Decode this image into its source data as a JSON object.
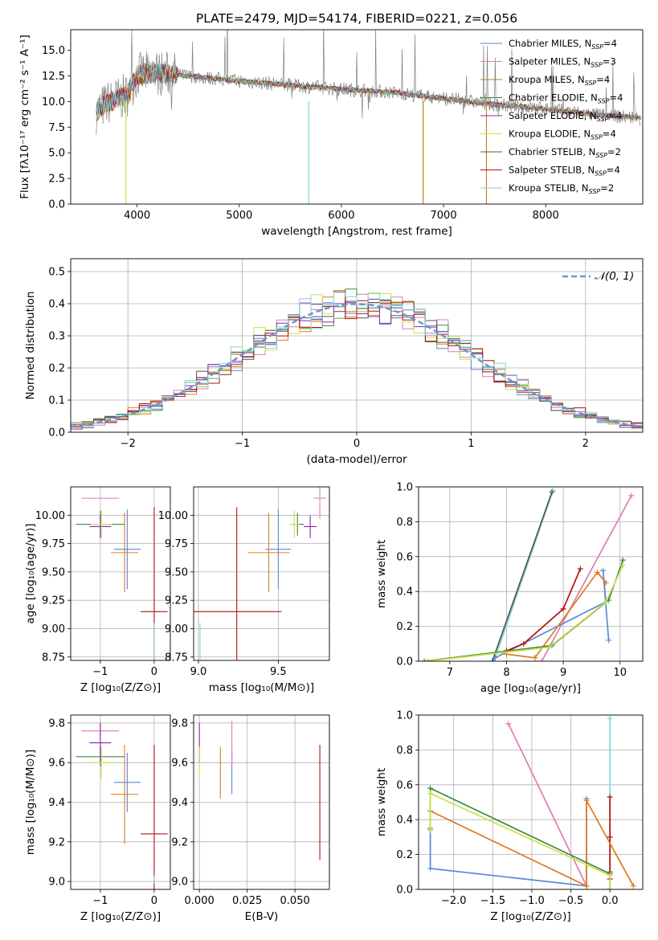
{
  "colors": {
    "Chabrier MILES": "#5b86dc",
    "Salpeter MILES": "#e27ab7",
    "Kroupa MILES": "#b08a14",
    "Chabrier ELODIE": "#3f8a3f",
    "Salpeter ELODIE": "#8f22b4",
    "Kroupa ELODIE": "#cce04a",
    "Chabrier STELIB": "#555555",
    "Salpeter STELIB": "#b31010",
    "Kroupa STELIB": "#7fd6d6",
    "orange": "#e07a1e",
    "data": "#808080",
    "gauss": "#6a94d4"
  },
  "chart_data": [
    {
      "id": "spectrum",
      "type": "line",
      "title": "PLATE=2479, MJD=54174, FIBERID=0221, z=0.056",
      "xlabel": "wavelength [Angstrom, rest frame]",
      "ylabel": "Flux [fλ10⁻¹⁷ erg cm⁻² s⁻¹ A⁻¹]",
      "xlim": [
        3350,
        8950
      ],
      "ylim": [
        0,
        17
      ],
      "xticks": [
        4000,
        5000,
        6000,
        7000,
        8000
      ],
      "yticks": [
        0.0,
        2.5,
        5.0,
        7.5,
        10.0,
        12.5,
        15.0
      ],
      "grid": false,
      "legend_position": "upper right",
      "legend": [
        {
          "name": "Chabrier MILES",
          "nssp": "4"
        },
        {
          "name": "Salpeter MILES",
          "nssp": "3"
        },
        {
          "name": "Kroupa MILES",
          "nssp": "4"
        },
        {
          "name": "Chabrier ELODIE",
          "nssp": "4"
        },
        {
          "name": "Salpeter ELODIE",
          "nssp": "4"
        },
        {
          "name": "Kroupa ELODIE",
          "nssp": "4"
        },
        {
          "name": "Chabrier STELIB",
          "nssp": "2"
        },
        {
          "name": "Salpeter STELIB",
          "nssp": "4"
        },
        {
          "name": "Kroupa STELIB",
          "nssp": "2"
        }
      ],
      "continuum": [
        [
          3600,
          9.0
        ],
        [
          3700,
          9.8
        ],
        [
          3900,
          10.6
        ],
        [
          4000,
          12.6
        ],
        [
          4200,
          12.8
        ],
        [
          4500,
          12.5
        ],
        [
          5000,
          12.0
        ],
        [
          5500,
          11.6
        ],
        [
          6000,
          11.2
        ],
        [
          6500,
          10.9
        ],
        [
          7000,
          10.3
        ],
        [
          7500,
          9.7
        ],
        [
          8000,
          9.3
        ],
        [
          8500,
          8.7
        ],
        [
          8930,
          8.4
        ]
      ],
      "dropouts": [
        {
          "x": 3890,
          "color": "#cce04a"
        },
        {
          "x": 5680,
          "color": "#7fd6d6"
        },
        {
          "x": 6800,
          "color": "#b08a14"
        },
        {
          "x": 7420,
          "color": "#e07a1e"
        }
      ]
    },
    {
      "id": "residuals",
      "type": "line",
      "xlabel": "(data-model)/error",
      "ylabel": "Normed distribution",
      "xlim": [
        -2.5,
        2.5
      ],
      "ylim": [
        0,
        0.54
      ],
      "xticks": [
        -2,
        -1,
        0,
        1,
        2
      ],
      "yticks": [
        0.0,
        0.1,
        0.2,
        0.3,
        0.4,
        0.5
      ],
      "grid": true,
      "legend_position": "upper right",
      "legend": [
        {
          "name": "𝒩(0, 1)"
        }
      ],
      "histogram_bin_width": 0.1
    },
    {
      "id": "Z-age",
      "type": "scatter",
      "xlabel": "Z [log₁₀(Z/Z⊙)]",
      "ylabel": "age  [log₁₀(age/yr)]",
      "xlim": [
        -1.55,
        0.3
      ],
      "ylim": [
        8.72,
        10.25
      ],
      "xticks": [
        -1,
        0
      ],
      "yticks": [
        8.75,
        9.0,
        9.25,
        9.5,
        9.75,
        10.0
      ],
      "grid": true,
      "points": [
        {
          "series": "Chabrier MILES",
          "x": -0.5,
          "y": 9.7,
          "xerr": 0.25,
          "yerr": 0.35
        },
        {
          "series": "Salpeter MILES",
          "x": -1.0,
          "y": 10.15,
          "xerr": 0.35,
          "yerr": 0.0
        },
        {
          "series": "orange",
          "x": -0.55,
          "y": 9.67,
          "xerr": 0.25,
          "yerr": 0.35
        },
        {
          "series": "Chabrier ELODIE",
          "x": -1.0,
          "y": 9.92,
          "xerr": 0.45,
          "yerr": 0.12
        },
        {
          "series": "Salpeter ELODIE",
          "x": -1.0,
          "y": 9.9,
          "xerr": 0.2,
          "yerr": 0.1
        },
        {
          "series": "Kroupa ELODIE",
          "x": -0.98,
          "y": 9.92,
          "xerr": 0.2,
          "yerr": 0.12
        },
        {
          "series": "Salpeter STELIB",
          "x": 0.0,
          "y": 9.15,
          "xerr": 0.25,
          "yerr": 0.92
        },
        {
          "series": "Kroupa STELIB",
          "x": 0.0,
          "y": 8.85,
          "xerr": 0.0,
          "yerr": 0.2
        }
      ]
    },
    {
      "id": "mass-age",
      "type": "scatter",
      "xlabel": "mass [log₁₀(M/M⊙)]",
      "ylabel": "",
      "xlim": [
        8.97,
        9.82
      ],
      "ylim": [
        8.72,
        10.25
      ],
      "xticks": [
        9.0,
        9.5
      ],
      "yticks": [
        8.75,
        9.0,
        9.25,
        9.5,
        9.75,
        10.0
      ],
      "grid": true,
      "points": [
        {
          "series": "Chabrier MILES",
          "x": 9.5,
          "y": 9.7,
          "xerr": 0.08,
          "yerr": 0.35
        },
        {
          "series": "Salpeter MILES",
          "x": 9.76,
          "y": 10.15,
          "xerr": 0.04,
          "yerr": 0.18
        },
        {
          "series": "orange",
          "x": 9.44,
          "y": 9.67,
          "xerr": 0.13,
          "yerr": 0.35
        },
        {
          "series": "Chabrier ELODIE",
          "x": 9.62,
          "y": 9.92,
          "xerr": 0.04,
          "yerr": 0.1
        },
        {
          "series": "Salpeter ELODIE",
          "x": 9.7,
          "y": 9.9,
          "xerr": 0.04,
          "yerr": 0.1
        },
        {
          "series": "Kroupa ELODIE",
          "x": 9.6,
          "y": 9.92,
          "xerr": 0.03,
          "yerr": 0.12
        },
        {
          "series": "Salpeter STELIB",
          "x": 9.24,
          "y": 9.15,
          "xerr": 0.28,
          "yerr": 0.92
        },
        {
          "series": "Kroupa STELIB",
          "x": 9.01,
          "y": 8.85,
          "xerr": 0.0,
          "yerr": 0.2
        }
      ]
    },
    {
      "id": "age-weight",
      "type": "line",
      "xlabel": "age  [log₁₀(age/yr)]",
      "ylabel": "mass weight",
      "xlim": [
        6.45,
        10.4
      ],
      "ylim": [
        0,
        1
      ],
      "xticks": [
        7,
        8,
        9,
        10
      ],
      "yticks": [
        0.0,
        0.2,
        0.4,
        0.6,
        0.8,
        1.0
      ],
      "grid": true,
      "series": [
        {
          "name": "Kroupa STELIB",
          "x": [
            7.78,
            8.82
          ],
          "y": [
            0.0,
            0.98
          ]
        },
        {
          "name": "Chabrier STELIB",
          "x": [
            7.75,
            8.8
          ],
          "y": [
            0.0,
            0.97
          ]
        },
        {
          "name": "Salpeter MILES",
          "x": [
            8.62,
            10.2
          ],
          "y": [
            0.0,
            0.95
          ]
        },
        {
          "name": "Chabrier MILES",
          "x": [
            7.8,
            9.75,
            9.7,
            9.8
          ],
          "y": [
            0.02,
            0.34,
            0.52,
            0.12
          ]
        },
        {
          "name": "Salpeter STELIB",
          "x": [
            8.0,
            8.3,
            9.0,
            9.3
          ],
          "y": [
            0.06,
            0.1,
            0.3,
            0.53
          ]
        },
        {
          "name": "orange",
          "x": [
            8.0,
            8.5,
            9.6,
            9.75
          ],
          "y": [
            0.04,
            0.02,
            0.51,
            0.45
          ]
        },
        {
          "name": "Chabrier ELODIE",
          "x": [
            6.55,
            8.8,
            9.8,
            10.05
          ],
          "y": [
            0.0,
            0.09,
            0.35,
            0.58
          ]
        },
        {
          "name": "Kroupa ELODIE",
          "x": [
            6.6,
            8.75,
            9.75,
            10.05
          ],
          "y": [
            0.0,
            0.08,
            0.34,
            0.55
          ]
        }
      ]
    },
    {
      "id": "Z-mass",
      "type": "scatter",
      "xlabel": "Z [log₁₀(Z/Z⊙)]",
      "ylabel": "mass [log₁₀(M/M⊙)]",
      "xlim": [
        -1.55,
        0.3
      ],
      "ylim": [
        8.96,
        9.84
      ],
      "xticks": [
        -1,
        0
      ],
      "yticks": [
        9.0,
        9.2,
        9.4,
        9.6,
        9.8
      ],
      "grid": true,
      "points": [
        {
          "series": "Chabrier MILES",
          "x": -0.5,
          "y": 9.5,
          "xerr": 0.25,
          "yerr": 0.15
        },
        {
          "series": "Salpeter MILES",
          "x": -1.0,
          "y": 9.76,
          "xerr": 0.35,
          "yerr": 0.04
        },
        {
          "series": "orange",
          "x": -0.55,
          "y": 9.44,
          "xerr": 0.25,
          "yerr": 0.25
        },
        {
          "series": "Chabrier ELODIE",
          "x": -1.0,
          "y": 9.63,
          "xerr": 0.45,
          "yerr": 0.05
        },
        {
          "series": "Salpeter ELODIE",
          "x": -1.0,
          "y": 9.7,
          "xerr": 0.2,
          "yerr": 0.1
        },
        {
          "series": "Kroupa ELODIE",
          "x": -0.98,
          "y": 9.6,
          "xerr": 0.25,
          "yerr": 0.08
        },
        {
          "series": "Salpeter STELIB",
          "x": 0.0,
          "y": 9.24,
          "xerr": 0.25,
          "yerr": 0.45
        },
        {
          "series": "Kroupa STELIB",
          "x": 0.0,
          "y": 9.01,
          "xerr": 0.0,
          "yerr": 0.02
        }
      ]
    },
    {
      "id": "ebv-mass",
      "type": "scatter",
      "xlabel": "E(B-V)",
      "ylabel": "",
      "xlim": [
        -0.003,
        0.068
      ],
      "ylim": [
        8.96,
        9.84
      ],
      "xticks": [
        0.0,
        0.025,
        0.05
      ],
      "yticks": [
        9.0,
        9.2,
        9.4,
        9.6,
        9.8
      ],
      "grid": true,
      "points": [
        {
          "series": "Salpeter ELODIE",
          "x": 0.0,
          "y": 9.7,
          "xerr": 0.0,
          "yerr": 0.1
        },
        {
          "series": "Kroupa ELODIE",
          "x": 0.0,
          "y": 9.6,
          "xerr": 0.0,
          "yerr": 0.08
        },
        {
          "series": "Kroupa STELIB",
          "x": 0.0,
          "y": 9.01,
          "xerr": 0.0,
          "yerr": 0.01
        },
        {
          "series": "orange",
          "x": 0.011,
          "y": 9.55,
          "xerr": 0.0,
          "yerr": 0.13
        },
        {
          "series": "Chabrier MILES",
          "x": 0.017,
          "y": 9.55,
          "xerr": 0.0,
          "yerr": 0.11
        },
        {
          "series": "Salpeter MILES",
          "x": 0.017,
          "y": 9.7,
          "xerr": 0.0,
          "yerr": 0.11
        },
        {
          "series": "Salpeter STELIB",
          "x": 0.063,
          "y": 9.4,
          "xerr": 0.0,
          "yerr": 0.29
        }
      ]
    },
    {
      "id": "Z-weight",
      "type": "line",
      "xlabel": "Z [log₁₀(Z/Z⊙)]",
      "ylabel": "mass weight",
      "xlim": [
        -2.45,
        0.42
      ],
      "ylim": [
        0,
        1
      ],
      "xticks": [
        -2.0,
        -1.5,
        -1.0,
        -0.5,
        0.0
      ],
      "yticks": [
        0.0,
        0.2,
        0.4,
        0.6,
        0.8,
        1.0
      ],
      "grid": true,
      "series": [
        {
          "name": "Kroupa STELIB",
          "x": [
            0.0,
            0.0
          ],
          "y": [
            0.0,
            0.98
          ]
        },
        {
          "name": "Salpeter MILES",
          "x": [
            -1.3,
            -0.3
          ],
          "y": [
            0.95,
            0.02
          ]
        },
        {
          "name": "Chabrier MILES",
          "x": [
            -2.3,
            -2.3,
            -0.3,
            -0.3
          ],
          "y": [
            0.34,
            0.12,
            0.02,
            0.52
          ]
        },
        {
          "name": "Salpeter STELIB",
          "x": [
            0.0,
            0.0,
            0.0,
            0.0
          ],
          "y": [
            0.53,
            0.3,
            0.1,
            0.06
          ]
        },
        {
          "name": "orange",
          "x": [
            -2.3,
            -0.3,
            -0.3,
            0.3
          ],
          "y": [
            0.45,
            0.02,
            0.51,
            0.02
          ]
        },
        {
          "name": "Chabrier ELODIE",
          "x": [
            -2.3,
            -2.3,
            0.0,
            0.0
          ],
          "y": [
            0.35,
            0.58,
            0.09,
            0.0
          ]
        },
        {
          "name": "Kroupa ELODIE",
          "x": [
            -2.3,
            -2.3,
            0.0,
            0.0
          ],
          "y": [
            0.34,
            0.55,
            0.08,
            0.0
          ]
        }
      ]
    }
  ]
}
